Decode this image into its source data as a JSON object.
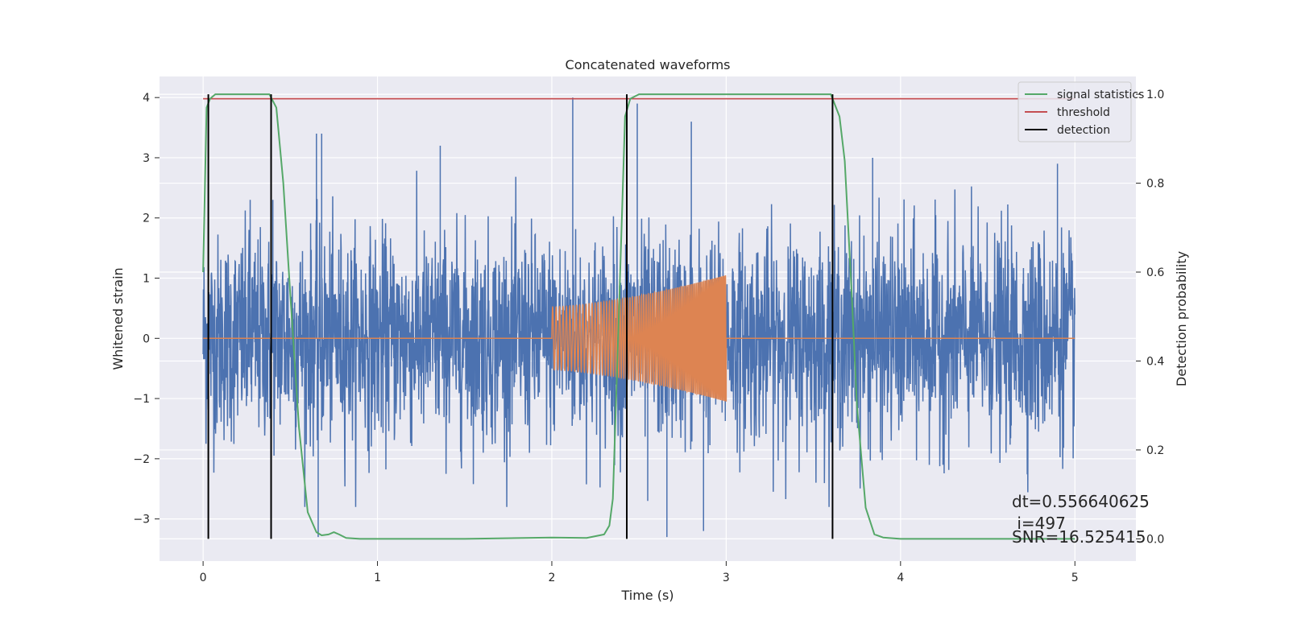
{
  "chart_data": {
    "type": "line",
    "title": "Concatenated waveforms",
    "xlabel": "Time (s)",
    "ylabel": "Whitened strain",
    "y2label": "Detection probability",
    "xlim": [
      -0.25,
      5.35
    ],
    "ylim": [
      -3.7,
      4.35
    ],
    "y2lim": [
      -0.05,
      1.04
    ],
    "xticks": [
      0,
      1,
      2,
      3,
      4,
      5
    ],
    "xtick_labels": [
      "0",
      "1",
      "2",
      "3",
      "4",
      "5"
    ],
    "yticks": [
      -3,
      -2,
      -1,
      0,
      1,
      2,
      3,
      4
    ],
    "ytick_labels": [
      "−3",
      "−2",
      "−1",
      "0",
      "1",
      "2",
      "3",
      "4"
    ],
    "y2ticks": [
      0.0,
      0.2,
      0.4,
      0.6,
      0.8,
      1.0
    ],
    "y2tick_labels": [
      "0.0",
      "0.2",
      "0.4",
      "0.6",
      "0.8",
      "1.0"
    ],
    "grid": true,
    "legend_position": "top-right",
    "colors": {
      "background": "#eaeaf2",
      "grid": "#ffffff",
      "noise": "#4c72b0",
      "injection": "#dd8452",
      "signal_statistics": "#55a868",
      "threshold": "#c44e52",
      "detection": "#000000"
    },
    "series": [
      {
        "description_key": "noise",
        "axis": "left",
        "x_range": [
          0,
          5
        ],
        "sample_rate_hz": 2048,
        "envelope_typical": [
          -1.5,
          1.5
        ],
        "peaks": [
          [
            0.27,
            2.3
          ],
          [
            0.4,
            2.3
          ],
          [
            0.65,
            3.4
          ],
          [
            0.66,
            -3.0
          ],
          [
            0.66,
            -3.3
          ],
          [
            0.68,
            3.4
          ],
          [
            1.36,
            3.2
          ],
          [
            2.12,
            4.0
          ],
          [
            2.49,
            3.9
          ],
          [
            2.55,
            -2.7
          ],
          [
            2.66,
            -3.3
          ],
          [
            2.8,
            3.6
          ],
          [
            2.87,
            -3.2
          ],
          [
            3.84,
            3.0
          ],
          [
            4.9,
            2.9
          ]
        ]
      },
      {
        "description_key": "injection",
        "axis": "left",
        "x_range": [
          2.0,
          3.0
        ],
        "amplitude_start": 0.52,
        "amplitude_end": 1.05,
        "frequency_start_hz": 50,
        "frequency_end_hz": 130
      },
      {
        "name": "signal statistics",
        "axis": "right",
        "x": [
          0.0,
          0.02,
          0.04,
          0.07,
          0.1,
          0.2,
          0.3,
          0.38,
          0.42,
          0.46,
          0.5,
          0.55,
          0.6,
          0.65,
          0.68,
          0.72,
          0.75,
          0.78,
          0.82,
          0.9,
          1.0,
          1.5,
          2.0,
          2.2,
          2.3,
          2.33,
          2.35,
          2.38,
          2.42,
          2.45,
          2.5,
          2.6,
          3.0,
          3.5,
          3.6,
          3.65,
          3.68,
          3.72,
          3.75,
          3.8,
          3.85,
          3.9,
          4.0,
          5.0
        ],
        "y": [
          0.6,
          0.97,
          0.99,
          1.0,
          1.0,
          1.0,
          1.0,
          1.0,
          0.97,
          0.8,
          0.55,
          0.25,
          0.06,
          0.015,
          0.008,
          0.01,
          0.015,
          0.01,
          0.002,
          0.0,
          0.0,
          0.0,
          0.003,
          0.002,
          0.01,
          0.03,
          0.09,
          0.45,
          0.95,
          0.99,
          1.0,
          1.0,
          1.0,
          1.0,
          1.0,
          0.95,
          0.85,
          0.55,
          0.3,
          0.07,
          0.01,
          0.003,
          0.0,
          0.0
        ]
      },
      {
        "name": "threshold",
        "axis": "right",
        "x": [
          0,
          5
        ],
        "y": [
          0.99,
          0.99
        ]
      },
      {
        "name": "detection",
        "axis": "right",
        "vertical_lines_x": [
          0.03,
          0.39,
          2.43,
          3.61
        ],
        "y_range": [
          0.0,
          1.0
        ]
      }
    ],
    "annotations": [
      "dt=0.556640625",
      " i=497",
      "SNR=16.525415"
    ]
  }
}
